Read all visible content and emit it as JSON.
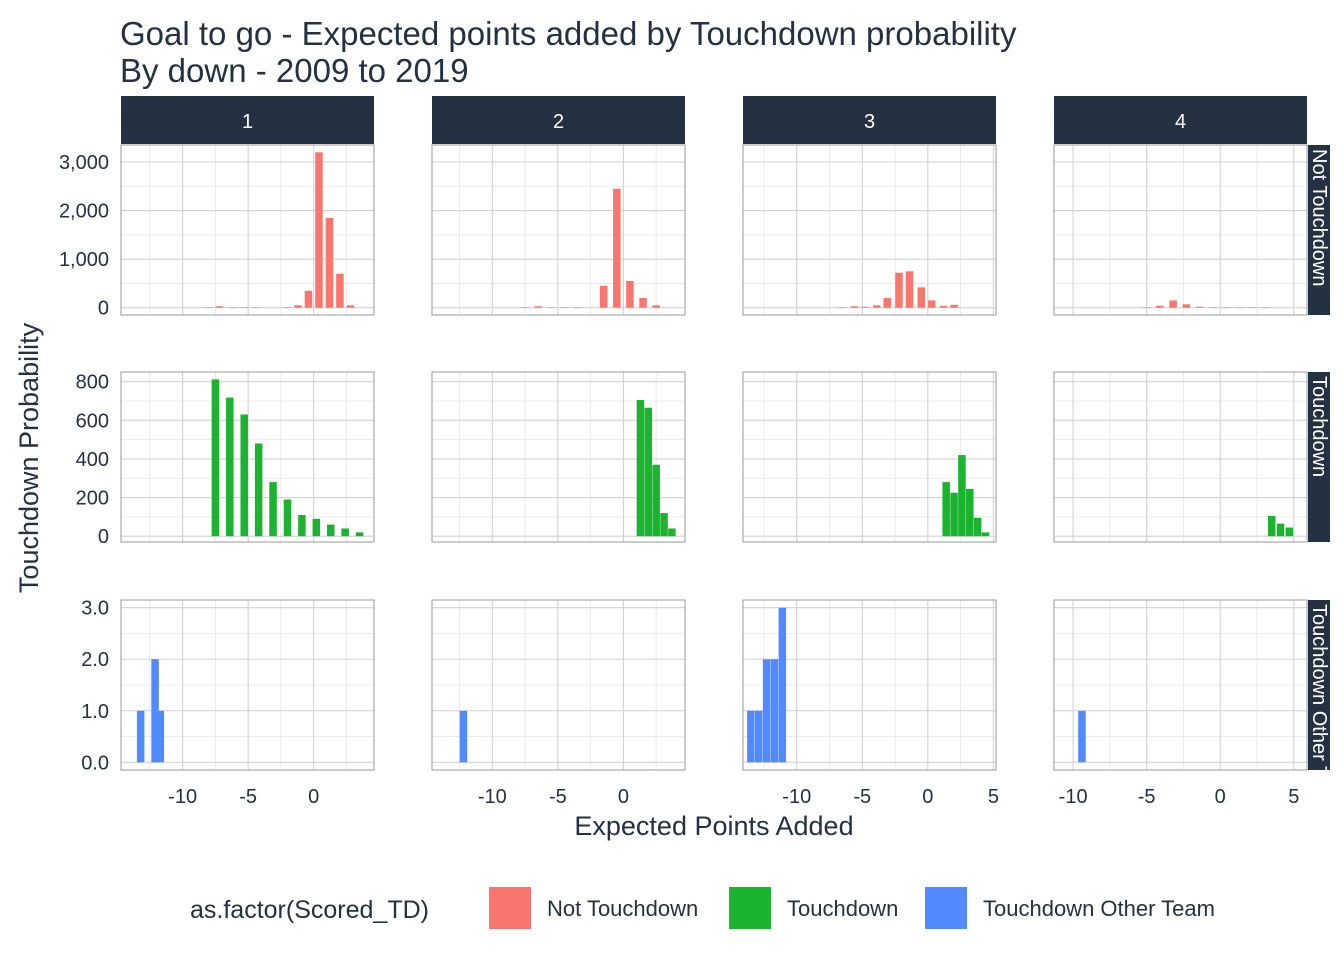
{
  "chart_data": {
    "type": "bar",
    "title": "Goal to go - Expected points added by Touchdown probability",
    "subtitle": "By down - 2009 to 2019",
    "xlabel": "Expected Points Added",
    "ylabel": "Touchdown Probability",
    "column_facets": [
      "1",
      "2",
      "3",
      "4"
    ],
    "row_facets": [
      "Not Touchdown",
      "Touchdown",
      "Touchdown Other Team"
    ],
    "legend": {
      "title": "as.factor(Scored_TD)",
      "position": "bottom",
      "entries": [
        {
          "label": "Not Touchdown",
          "color": "#F8766D"
        },
        {
          "label": "Touchdown",
          "color": "#1BB32F"
        },
        {
          "label": "Touchdown Other Team",
          "color": "#5189FF"
        }
      ]
    },
    "x_ranges": [
      [
        -14.7,
        4.6
      ],
      [
        -14.6,
        4.7
      ],
      [
        -14.1,
        5.2
      ],
      [
        -11.3,
        5.9
      ]
    ],
    "x_ticks": [
      [
        "-10",
        "-5",
        "0"
      ],
      [
        "-10",
        "-5",
        "0"
      ],
      [
        "-10",
        "-5",
        "0",
        "5"
      ],
      [
        "-10",
        "-5",
        "0",
        "5"
      ]
    ],
    "y_ranges": [
      [
        -150,
        3350
      ],
      [
        -30,
        850
      ],
      [
        -0.15,
        3.15
      ]
    ],
    "y_ticks": [
      [
        "0",
        "1,000",
        "2,000",
        "3,000"
      ],
      [
        "0",
        "200",
        "400",
        "600",
        "800"
      ],
      [
        "0.0",
        "1.0",
        "2.0",
        "3.0"
      ]
    ],
    "grid": true,
    "panels": [
      [
        {
          "x": [
            -8,
            -7.2,
            -6.1,
            -5.3,
            -4.4,
            -2,
            -1.2,
            -0.4,
            0.4,
            1.2,
            2,
            2.8
          ],
          "y": [
            10,
            30,
            10,
            10,
            5,
            10,
            50,
            350,
            3200,
            1850,
            700,
            50
          ]
        },
        {
          "x": [
            -7.5,
            -6.4,
            -5.3,
            -4.2,
            -3.1,
            -2.0,
            -0.9,
            0.2,
            1.3,
            2.4,
            3.5
          ],
          "y": [
            812,
            718,
            630,
            480,
            280,
            190,
            110,
            90,
            60,
            40,
            20
          ]
        },
        {
          "x": [
            -13.2,
            -12.1,
            -11.7
          ],
          "y": [
            1,
            2,
            1
          ]
        }
      ],
      [
        {
          "x": [
            -7.5,
            -6.5,
            -5.5,
            -4.5,
            -3.5,
            -1.5,
            -0.5,
            0.5,
            1.5,
            2.5
          ],
          "y": [
            10,
            30,
            10,
            5,
            10,
            450,
            2450,
            550,
            200,
            50
          ]
        },
        {
          "x": [
            1.3,
            1.9,
            2.5,
            3.1,
            3.7
          ],
          "y": [
            705,
            665,
            370,
            120,
            40
          ]
        },
        {
          "x": [
            -12.2
          ],
          "y": [
            1
          ]
        }
      ],
      [
        {
          "x": [
            -6.5,
            -5.6,
            -4.8,
            -3.9,
            -3.1,
            -2.2,
            -1.4,
            -0.5,
            0.3,
            1.2,
            2.0
          ],
          "y": [
            10,
            30,
            20,
            50,
            200,
            720,
            750,
            420,
            150,
            40,
            60
          ]
        },
        {
          "x": [
            1.4,
            2.0,
            2.6,
            3.2,
            3.8,
            4.4
          ],
          "y": [
            280,
            225,
            420,
            245,
            95,
            20
          ]
        },
        {
          "x": [
            -13.5,
            -12.9,
            -12.3,
            -11.7,
            -11.1,
            -10.5
          ],
          "y": [
            1,
            1,
            2,
            2,
            3,
            0
          ]
        }
      ],
      [
        {
          "x": [
            -5.0,
            -4.1,
            -3.2,
            -2.3,
            -1.4,
            -0.5,
            0.4,
            1.3,
            2.2,
            3.1
          ],
          "y": [
            10,
            40,
            150,
            70,
            20,
            10,
            10,
            5,
            5,
            10
          ]
        },
        {
          "x": [
            3.5,
            4.1,
            4.7
          ],
          "y": [
            105,
            65,
            45
          ]
        },
        {
          "x": [
            -9.4
          ],
          "y": [
            1
          ]
        }
      ]
    ]
  }
}
